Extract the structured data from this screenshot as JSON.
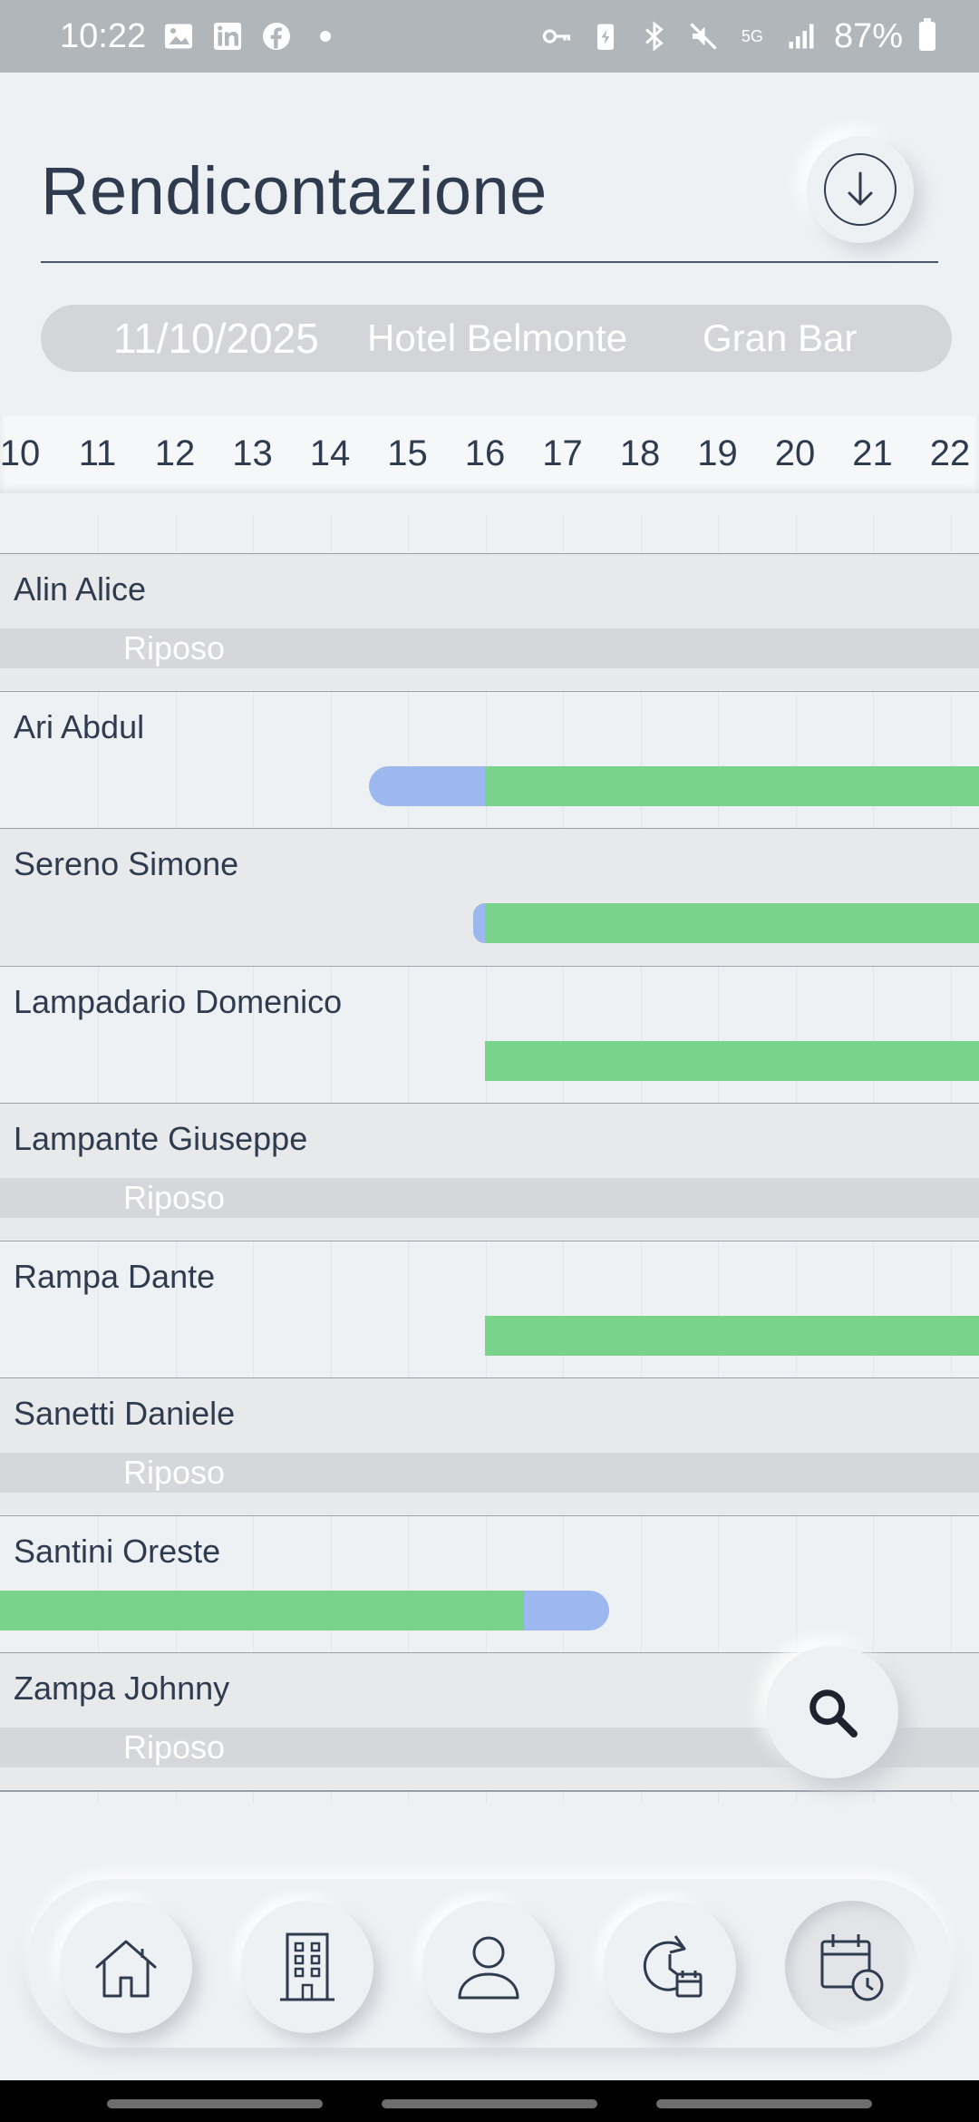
{
  "status_bar": {
    "time": "10:22",
    "network": "5G",
    "battery": "87%",
    "left_icons": [
      "image-icon",
      "linkedin-icon",
      "facebook-icon",
      "dot-icon"
    ],
    "right_icons": [
      "key-icon",
      "battery-saver-icon",
      "bluetooth-icon",
      "mute-icon",
      "network-5g-icon",
      "signal-icon",
      "battery-icon"
    ]
  },
  "header": {
    "title": "Rendicontazione",
    "download_icon": "download-icon"
  },
  "filters": {
    "date": "11/10/2025",
    "hotel": "Hotel Belmonte",
    "outlet": "Gran Bar"
  },
  "timeline": {
    "hours": [
      "10",
      "11",
      "12",
      "13",
      "14",
      "15",
      "16",
      "17",
      "18",
      "19",
      "20",
      "21",
      "22"
    ],
    "rest_label": "Riposo",
    "colors": {
      "planned": "#9db8ef",
      "worked": "#79d38b",
      "rest": "#d5d7da"
    },
    "rows": [
      {
        "name": "Alin Alice",
        "rest": true,
        "segments": []
      },
      {
        "name": "Ari Abdul",
        "rest": false,
        "segments": [
          {
            "type": "planned",
            "start": 14.5,
            "end": 16.0
          },
          {
            "type": "worked",
            "start": 16.0,
            "end": 22.5
          }
        ]
      },
      {
        "name": "Sereno Simone",
        "rest": false,
        "segments": [
          {
            "type": "planned",
            "start": 15.85,
            "end": 16.0
          },
          {
            "type": "worked",
            "start": 16.0,
            "end": 22.5
          }
        ]
      },
      {
        "name": "Lampadario Domenico",
        "rest": false,
        "segments": [
          {
            "type": "worked",
            "start": 16.0,
            "end": 22.5
          }
        ]
      },
      {
        "name": "Lampante Giuseppe",
        "rest": true,
        "segments": []
      },
      {
        "name": "Rampa Dante",
        "rest": false,
        "segments": [
          {
            "type": "worked",
            "start": 16.0,
            "end": 22.5
          }
        ]
      },
      {
        "name": "Sanetti Daniele",
        "rest": true,
        "segments": []
      },
      {
        "name": "Santini Oreste",
        "rest": false,
        "segments": [
          {
            "type": "worked",
            "start": 9.5,
            "end": 16.5
          },
          {
            "type": "planned",
            "start": 16.5,
            "end": 17.6
          }
        ]
      },
      {
        "name": "Zampa Johnny",
        "rest": true,
        "segments": []
      }
    ]
  },
  "search_fab_icon": "search-icon",
  "nav": {
    "items": [
      {
        "id": "home",
        "icon": "home-icon",
        "active": false
      },
      {
        "id": "building",
        "icon": "building-icon",
        "active": false
      },
      {
        "id": "profile",
        "icon": "user-icon",
        "active": false
      },
      {
        "id": "shift-change",
        "icon": "refresh-calendar-icon",
        "active": false
      },
      {
        "id": "reporting",
        "icon": "calendar-history-icon",
        "active": true
      }
    ]
  }
}
